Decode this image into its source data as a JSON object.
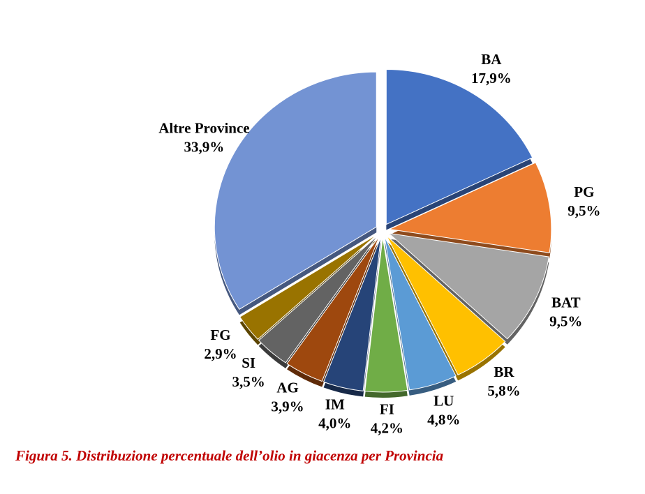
{
  "chart_data": {
    "type": "pie",
    "caption": "Figura 5. Distribuzione percentuale dell’olio in giacenza per Provincia",
    "categories": [
      "BA",
      "PG",
      "BAT",
      "BR",
      "LU",
      "FI",
      "IM",
      "AG",
      "SI",
      "FG",
      "Altre Province"
    ],
    "values": [
      17.9,
      9.5,
      9.5,
      5.8,
      4.8,
      4.2,
      4.0,
      3.9,
      3.5,
      2.9,
      33.9
    ],
    "value_labels": [
      "17,9%",
      "9,5%",
      "9,5%",
      "5,8%",
      "4,8%",
      "4,2%",
      "4,0%",
      "3,9%",
      "3,5%",
      "2,9%",
      "33,9%"
    ],
    "colors": [
      "#4472c4",
      "#ed7d31",
      "#a5a5a5",
      "#ffc000",
      "#5b9bd5",
      "#70ad47",
      "#264478",
      "#9e480e",
      "#636363",
      "#997300",
      "#7393d3"
    ]
  }
}
